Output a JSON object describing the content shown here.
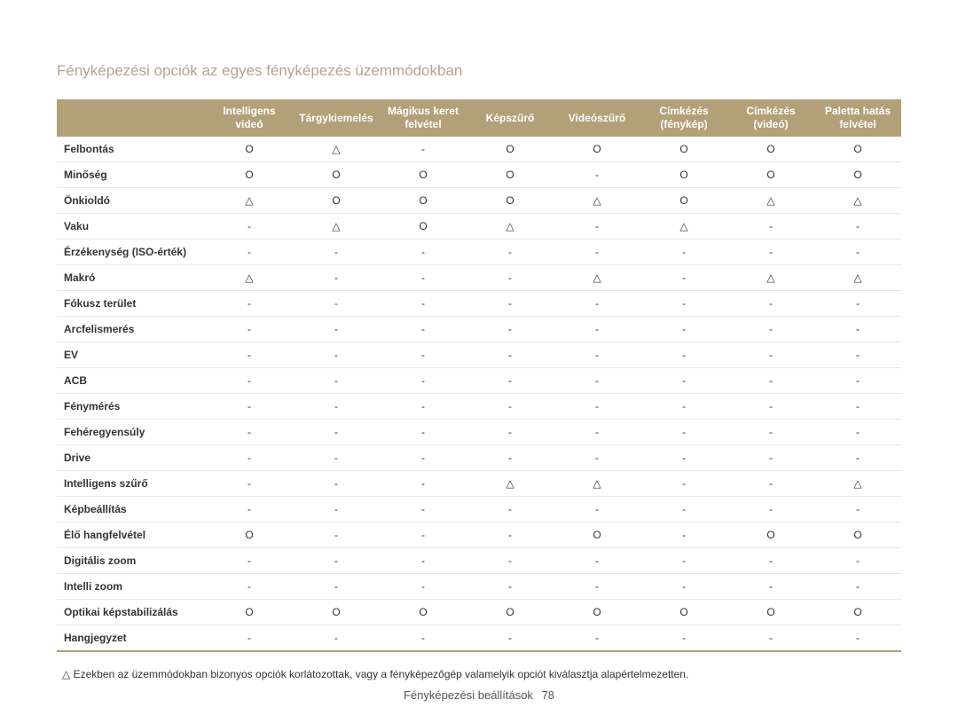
{
  "title": "Fényképezési opciók az egyes fényképezés üzemmódokban",
  "columns": [
    "Intelligens videó",
    "Tárgykiemelés",
    "Mágikus keret felvétel",
    "Képszűrő",
    "Videószűrő",
    "Címkézés (fénykép)",
    "Címkézés (videó)",
    "Paletta hatás felvétel"
  ],
  "symbols": {
    "o": "O",
    "t": "△",
    "d": "-"
  },
  "rows": [
    {
      "label": "Felbontás",
      "cells": [
        "o",
        "t",
        "d",
        "o",
        "o",
        "o",
        "o",
        "o"
      ]
    },
    {
      "label": "Minőség",
      "cells": [
        "o",
        "o",
        "o",
        "o",
        "d",
        "o",
        "o",
        "o"
      ]
    },
    {
      "label": "Önkioldó",
      "cells": [
        "t",
        "o",
        "o",
        "o",
        "t",
        "o",
        "t",
        "t"
      ]
    },
    {
      "label": "Vaku",
      "cells": [
        "d",
        "t",
        "o",
        "t",
        "d",
        "t",
        "d",
        "d"
      ]
    },
    {
      "label": "Érzékenység (ISO-érték)",
      "cells": [
        "d",
        "d",
        "d",
        "d",
        "d",
        "d",
        "d",
        "d"
      ]
    },
    {
      "label": "Makró",
      "cells": [
        "t",
        "d",
        "d",
        "d",
        "t",
        "d",
        "t",
        "t"
      ]
    },
    {
      "label": "Fókusz terület",
      "cells": [
        "d",
        "d",
        "d",
        "d",
        "d",
        "d",
        "d",
        "d"
      ]
    },
    {
      "label": "Arcfelismerés",
      "cells": [
        "d",
        "d",
        "d",
        "d",
        "d",
        "d",
        "d",
        "d"
      ]
    },
    {
      "label": "EV",
      "cells": [
        "d",
        "d",
        "d",
        "d",
        "d",
        "d",
        "d",
        "d"
      ]
    },
    {
      "label": "ACB",
      "cells": [
        "d",
        "d",
        "d",
        "d",
        "d",
        "d",
        "d",
        "d"
      ]
    },
    {
      "label": "Fénymérés",
      "cells": [
        "d",
        "d",
        "d",
        "d",
        "d",
        "d",
        "d",
        "d"
      ]
    },
    {
      "label": "Fehéregyensúly",
      "cells": [
        "d",
        "d",
        "d",
        "d",
        "d",
        "d",
        "d",
        "d"
      ]
    },
    {
      "label": "Drive",
      "cells": [
        "d",
        "d",
        "d",
        "d",
        "d",
        "d",
        "d",
        "d"
      ]
    },
    {
      "label": "Intelligens szűrő",
      "cells": [
        "d",
        "d",
        "d",
        "t",
        "t",
        "d",
        "d",
        "t"
      ]
    },
    {
      "label": "Képbeállítás",
      "cells": [
        "d",
        "d",
        "d",
        "d",
        "d",
        "d",
        "d",
        "d"
      ]
    },
    {
      "label": "Élő hangfelvétel",
      "cells": [
        "o",
        "d",
        "d",
        "d",
        "o",
        "d",
        "o",
        "o"
      ]
    },
    {
      "label": "Digitális zoom",
      "cells": [
        "d",
        "d",
        "d",
        "d",
        "d",
        "d",
        "d",
        "d"
      ]
    },
    {
      "label": "Intelli zoom",
      "cells": [
        "d",
        "d",
        "d",
        "d",
        "d",
        "d",
        "d",
        "d"
      ]
    },
    {
      "label": "Optikai képstabilizálás",
      "cells": [
        "o",
        "o",
        "o",
        "o",
        "o",
        "o",
        "o",
        "o"
      ]
    },
    {
      "label": "Hangjegyzet",
      "cells": [
        "d",
        "d",
        "d",
        "d",
        "d",
        "d",
        "d",
        "d"
      ]
    }
  ],
  "footnote_prefix": "△",
  "footnote_text": "Ezekben az üzemmódokban bizonyos opciók korlátozottak, vagy a fényképezőgép valamelyik opciót kiválasztja alapértelmezetten.",
  "footer_section": "Fényképezési beállítások",
  "footer_page": "78",
  "style": {
    "header_bg": "#b2a078",
    "header_fg": "#ffffff",
    "title_color": "#b3a48f",
    "row_border": "#ece7de",
    "font_size_body": 12,
    "font_size_title": 17
  }
}
